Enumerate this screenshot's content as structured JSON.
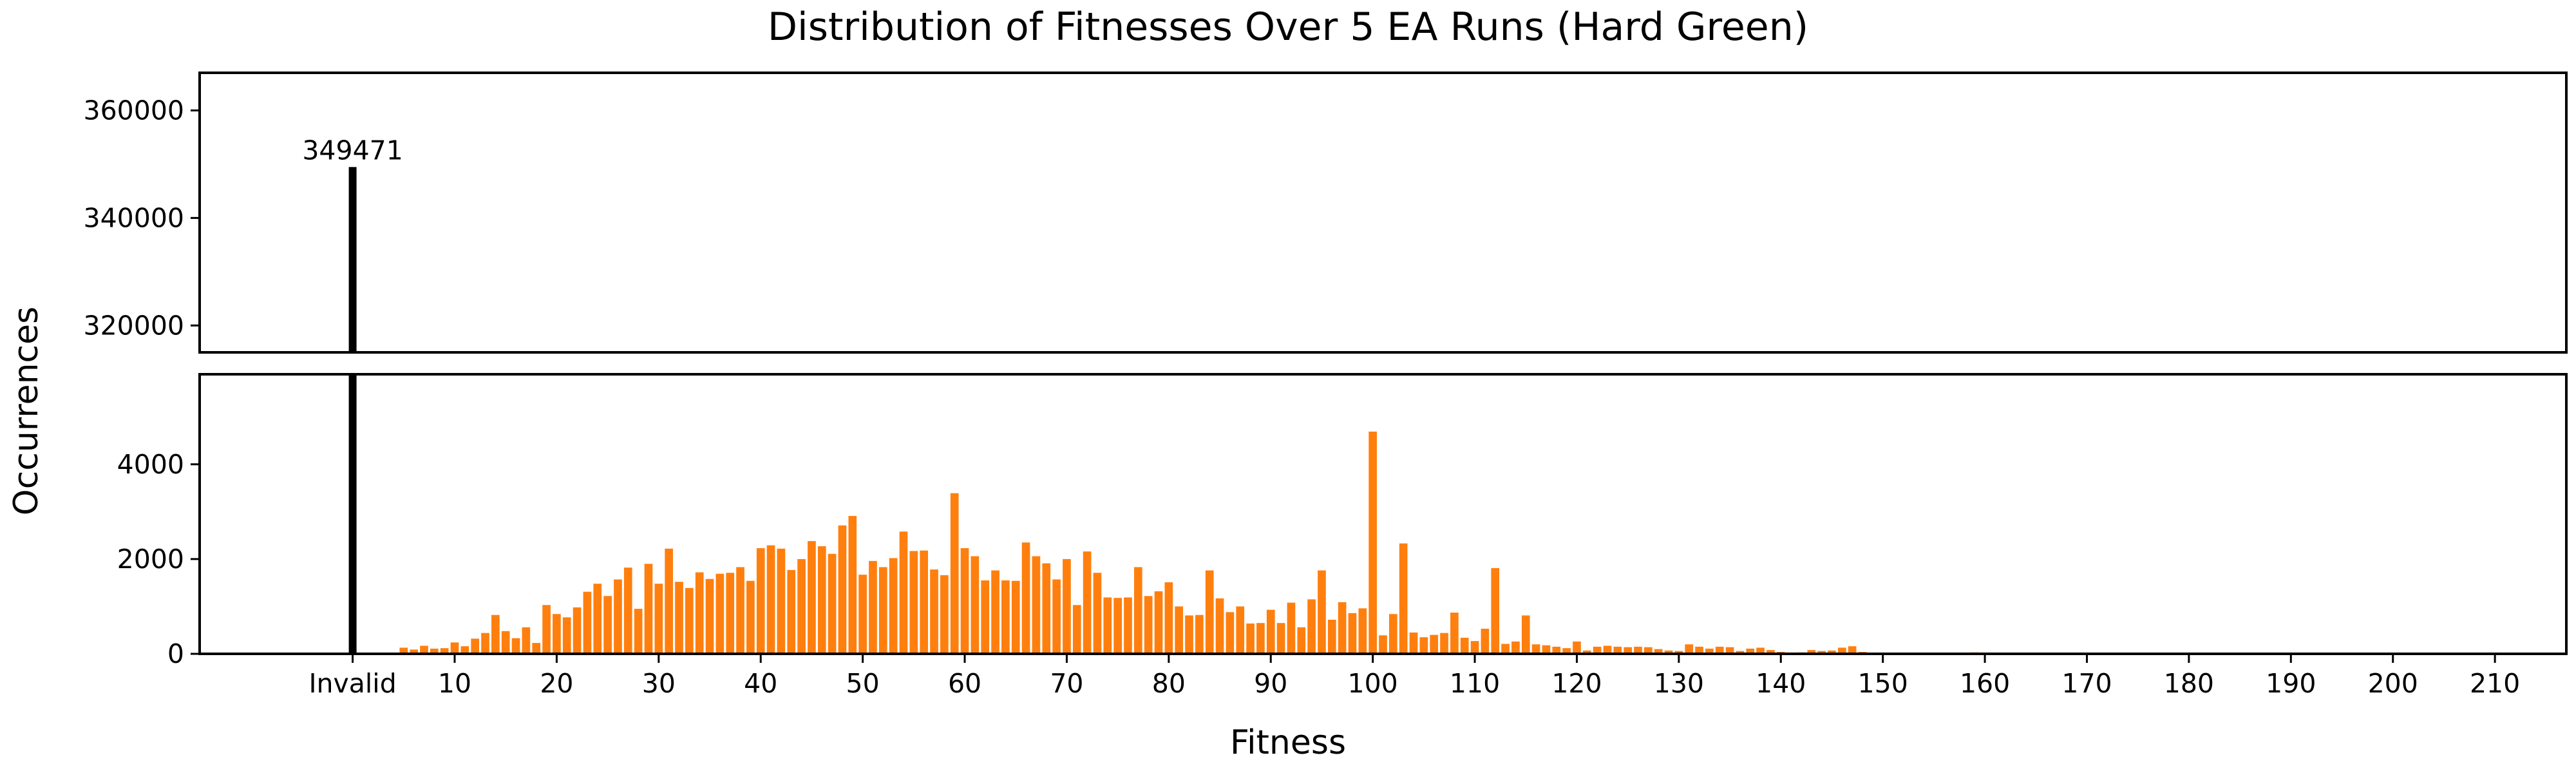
{
  "chart_data": {
    "type": "bar",
    "title": "Distribution of Fitnesses Over 5 EA Runs (Hard Green)",
    "xlabel": "Fitness",
    "ylabel": "Occurrences",
    "broken_y_axis": true,
    "upper_panel_ylim": [
      315000,
      367000
    ],
    "lower_panel_ylim": [
      0,
      5900
    ],
    "upper_panel_yticks": [
      320000,
      340000,
      360000
    ],
    "lower_panel_yticks": [
      0,
      2000,
      4000
    ],
    "xlim": [
      -15,
      217
    ],
    "xticks": [
      {
        "value": 0,
        "label": "Invalid"
      },
      {
        "value": 10,
        "label": "10"
      },
      {
        "value": 20,
        "label": "20"
      },
      {
        "value": 30,
        "label": "30"
      },
      {
        "value": 40,
        "label": "40"
      },
      {
        "value": 50,
        "label": "50"
      },
      {
        "value": 60,
        "label": "60"
      },
      {
        "value": 70,
        "label": "70"
      },
      {
        "value": 80,
        "label": "80"
      },
      {
        "value": 90,
        "label": "90"
      },
      {
        "value": 100,
        "label": "100"
      },
      {
        "value": 110,
        "label": "110"
      },
      {
        "value": 120,
        "label": "120"
      },
      {
        "value": 130,
        "label": "130"
      },
      {
        "value": 140,
        "label": "140"
      },
      {
        "value": 150,
        "label": "150"
      },
      {
        "value": 160,
        "label": "160"
      },
      {
        "value": 170,
        "label": "170"
      },
      {
        "value": 180,
        "label": "180"
      },
      {
        "value": 190,
        "label": "190"
      },
      {
        "value": 200,
        "label": "200"
      },
      {
        "value": 210,
        "label": "210"
      }
    ],
    "invalid": {
      "label": "Invalid",
      "value": 349471,
      "data_label": "349471",
      "color": "#000000"
    },
    "series": [
      {
        "color": "#ff7f0e",
        "x_start": 5,
        "values": [
          130,
          90,
          170,
          110,
          120,
          240,
          160,
          320,
          440,
          820,
          480,
          330,
          560,
          230,
          1030,
          840,
          770,
          980,
          1310,
          1480,
          1220,
          1570,
          1820,
          950,
          1900,
          1480,
          2220,
          1520,
          1390,
          1720,
          1580,
          1690,
          1710,
          1830,
          1540,
          2230,
          2290,
          2220,
          1770,
          2000,
          2380,
          2270,
          2110,
          2710,
          2910,
          1670,
          1960,
          1830,
          2020,
          2580,
          2170,
          2180,
          1780,
          1660,
          3390,
          2230,
          2060,
          1550,
          1760,
          1550,
          1540,
          2350,
          2060,
          1910,
          1570,
          2000,
          1030,
          2160,
          1710,
          1190,
          1180,
          1190,
          1830,
          1220,
          1320,
          1510,
          1000,
          810,
          820,
          1760,
          1170,
          880,
          1000,
          640,
          650,
          930,
          650,
          1080,
          560,
          1150,
          1760,
          720,
          1090,
          860,
          960,
          4690,
          390,
          840,
          2330,
          450,
          350,
          400,
          440,
          870,
          340,
          270,
          530,
          1810,
          210,
          260,
          810,
          200,
          180,
          150,
          120,
          260,
          70,
          150,
          170,
          150,
          140,
          150,
          140,
          100,
          70,
          60,
          200,
          150,
          110,
          150,
          140,
          60,
          110,
          130,
          80,
          40,
          20,
          30,
          80,
          60,
          70,
          130,
          160,
          40,
          20,
          0,
          20,
          10,
          0,
          10,
          10,
          5,
          10,
          5,
          30,
          0,
          5,
          0,
          0,
          0,
          5,
          0,
          0,
          0,
          0,
          0,
          0,
          0,
          0,
          0,
          0,
          0,
          0,
          0,
          0,
          0,
          0,
          0,
          0,
          0,
          0,
          0,
          0,
          0,
          0,
          0,
          0,
          0,
          0,
          0,
          0,
          0,
          0,
          0,
          0,
          0,
          0,
          0,
          0,
          0,
          0,
          0,
          0,
          0,
          0,
          0,
          0,
          0,
          0,
          0,
          0
        ]
      }
    ]
  }
}
